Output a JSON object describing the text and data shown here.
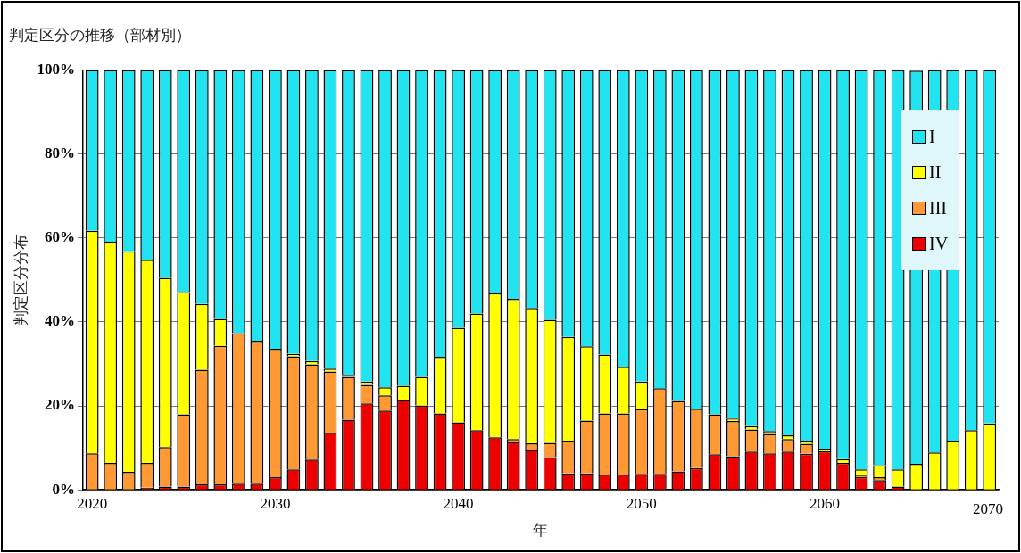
{
  "chart_data": {
    "type": "bar",
    "title": "判定区分の推移（部材別）",
    "xlabel": "年",
    "ylabel": "判定区分分布",
    "categories": [
      "2020",
      null,
      null,
      null,
      null,
      null,
      null,
      null,
      null,
      null,
      "2030",
      null,
      null,
      null,
      null,
      null,
      null,
      null,
      null,
      null,
      "2040",
      null,
      null,
      null,
      null,
      null,
      null,
      null,
      null,
      null,
      "2050",
      null,
      null,
      null,
      null,
      null,
      null,
      null,
      null,
      null,
      "2060",
      null,
      null,
      null,
      null,
      null,
      null,
      null,
      null,
      null
    ],
    "stacked": true,
    "series": [
      {
        "name": "IV",
        "color": "#ee0000",
        "values": [
          0,
          0,
          0,
          0.5,
          0.8,
          0.8,
          1.3,
          1.3,
          1.5,
          1.5,
          3.0,
          4.9,
          7.2,
          13.6,
          16.7,
          20.6,
          18.9,
          21.4,
          20.1,
          18.2,
          16.1,
          14.2,
          12.5,
          11.4,
          9.5,
          7.8,
          3.9,
          3.9,
          3.6,
          3.6,
          3.8,
          3.8,
          4.4,
          5.2,
          8.5,
          8.0,
          9.1,
          8.7,
          9.1,
          8.6,
          9.2,
          6.4,
          3.0,
          2.3,
          0.8,
          0,
          0,
          0,
          0,
          0
        ]
      },
      {
        "name": "III",
        "color": "#ff9933",
        "values": [
          8.7,
          6.4,
          4.3,
          5.9,
          9.4,
          17.2,
          27.3,
          33.0,
          35.8,
          34.0,
          30.6,
          26.9,
          22.7,
          14.6,
          10.2,
          4.4,
          3.6,
          0,
          0,
          0,
          0,
          0,
          0,
          0.7,
          1.6,
          3.4,
          7.8,
          12.6,
          14.6,
          14.6,
          15.4,
          20.4,
          16.8,
          14.1,
          9.5,
          8.4,
          5.3,
          4.6,
          3.0,
          2.4,
          0,
          0,
          0.6,
          0.7,
          0,
          0,
          0,
          0,
          0,
          0
        ]
      },
      {
        "name": "II",
        "color": "#ffff00",
        "values": [
          53.0,
          52.7,
          52.5,
          48.4,
          40.3,
          29.1,
          15.7,
          6.4,
          0,
          0,
          0,
          0.6,
          0.8,
          0.7,
          0.5,
          0.8,
          1.9,
          3.4,
          6.8,
          13.5,
          22.5,
          27.8,
          34.3,
          33.4,
          32.2,
          29.3,
          24.7,
          17.7,
          14.0,
          11.1,
          6.6,
          0,
          0,
          0,
          0,
          0.6,
          0.8,
          0.7,
          0.9,
          0.7,
          0.6,
          0.9,
          1.3,
          2.9,
          4.1,
          6.2,
          8.9,
          11.7,
          14.2,
          15.8
        ]
      },
      {
        "name": "I",
        "color": "#22e4f0",
        "values": [
          38.3,
          40.9,
          43.2,
          45.2,
          49.5,
          52.9,
          55.7,
          59.3,
          62.7,
          64.5,
          66.4,
          67.6,
          69.3,
          71.1,
          72.6,
          74.2,
          75.6,
          75.2,
          73.1,
          68.3,
          61.4,
          58.0,
          53.2,
          54.5,
          56.7,
          59.5,
          63.6,
          65.8,
          67.8,
          70.7,
          74.2,
          75.8,
          78.8,
          80.7,
          82.0,
          83.0,
          84.8,
          86.0,
          87.0,
          88.3,
          90.2,
          92.7,
          95.1,
          94.1,
          95.1,
          93.6,
          91.1,
          88.3,
          85.8,
          84.2
        ]
      }
    ],
    "ylim": [
      0,
      100
    ],
    "yticks": [
      {
        "value": 0,
        "label": "0%"
      },
      {
        "value": 20,
        "label": "20%"
      },
      {
        "value": 40,
        "label": "40%"
      },
      {
        "value": 60,
        "label": "60%"
      },
      {
        "value": 80,
        "label": "80%"
      },
      {
        "value": 100,
        "label": "100%"
      }
    ],
    "grid": "y",
    "legend": "top right",
    "annotations": [
      "2070"
    ]
  }
}
